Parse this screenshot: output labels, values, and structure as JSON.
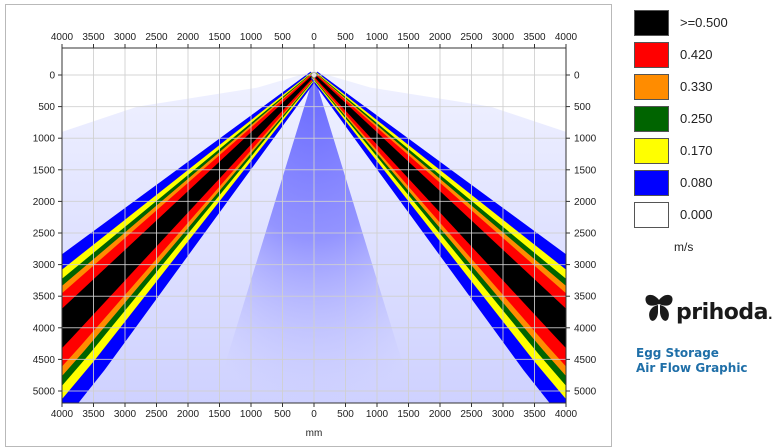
{
  "chart_data": {
    "type": "heatmap",
    "title": "",
    "xlabel": "mm",
    "ylabel": "",
    "x_range": [
      -4000,
      4000
    ],
    "y_range": [
      0,
      5200
    ],
    "y_inverted": true,
    "grid": true,
    "x_tick_values": [
      -4000,
      -3500,
      -3000,
      -2500,
      -2000,
      -1500,
      -1000,
      -500,
      0,
      500,
      1000,
      1500,
      2000,
      2500,
      3000,
      3500,
      4000
    ],
    "x_tick_labels": [
      "4000",
      "3500",
      "3000",
      "2500",
      "2000",
      "1500",
      "1000",
      "500",
      "0",
      "500",
      "1000",
      "1500",
      "2000",
      "2500",
      "3000",
      "3500",
      "4000"
    ],
    "y_tick_values": [
      0,
      500,
      1000,
      1500,
      2000,
      2500,
      3000,
      3500,
      4000,
      4500,
      5000
    ],
    "y_tick_labels": [
      "0",
      "500",
      "1000",
      "1500",
      "2000",
      "2500",
      "3000",
      "3500",
      "4000",
      "4500",
      "5000"
    ],
    "source_point": {
      "x": 0,
      "y": 0
    },
    "jets": [
      {
        "name": "",
        "start": {
          "x": 0,
          "y": 0
        },
        "end": {
          "x": -4000,
          "y": 4000
        }
      },
      {
        "name": "",
        "start": {
          "x": 0,
          "y": 0
        },
        "end": {
          "x": 4000,
          "y": 4000
        }
      }
    ],
    "color_scale": [
      {
        "label": ">=0.500",
        "value": 0.5,
        "color": "#000000"
      },
      {
        "label": "0.420",
        "value": 0.42,
        "color": "#ff0000"
      },
      {
        "label": "0.330",
        "value": 0.33,
        "color": "#ff8c00"
      },
      {
        "label": "0.250",
        "value": 0.25,
        "color": "#006400"
      },
      {
        "label": "0.170",
        "value": 0.17,
        "color": "#ffff00"
      },
      {
        "label": "0.080",
        "value": 0.08,
        "color": "#0000ff"
      },
      {
        "label": "0.000",
        "value": 0.0,
        "color": "#ffffff"
      }
    ],
    "unit": "m/s"
  },
  "brand": {
    "name": "prihoda",
    "trademark": ".",
    "caption_line1": "Egg Storage",
    "caption_line2": "Air Flow Graphic"
  }
}
